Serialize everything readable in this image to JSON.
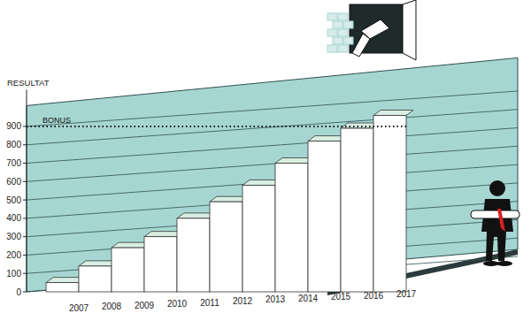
{
  "chart_data": {
    "type": "bar",
    "y_label": "RESULTAT",
    "categories": [
      "2007",
      "2008",
      "2009",
      "2010",
      "2011",
      "2012",
      "2013",
      "2014",
      "2015",
      "2016",
      "2017"
    ],
    "values": [
      50,
      140,
      240,
      300,
      400,
      490,
      580,
      700,
      820,
      890,
      960
    ],
    "color": "#ffffff",
    "ylim": [
      0,
      1100
    ],
    "yticks": [
      0,
      100,
      200,
      300,
      400,
      500,
      600,
      700,
      800,
      900
    ],
    "grid": true,
    "annotations": [
      {
        "text": "BONUS",
        "value": 900
      }
    ]
  }
}
